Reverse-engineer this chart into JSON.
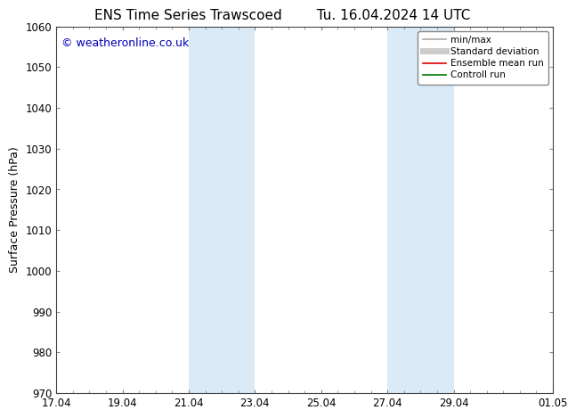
{
  "title_left": "ENS Time Series Trawscoed",
  "title_right": "Tu. 16.04.2024 14 UTC",
  "ylabel": "Surface Pressure (hPa)",
  "ylim": [
    970,
    1060
  ],
  "yticks": [
    970,
    980,
    990,
    1000,
    1010,
    1020,
    1030,
    1040,
    1050,
    1060
  ],
  "xtick_labels": [
    "17.04",
    "19.04",
    "21.04",
    "23.04",
    "25.04",
    "27.04",
    "29.04",
    "01.05"
  ],
  "xtick_positions": [
    0,
    2,
    4,
    6,
    8,
    10,
    12,
    15
  ],
  "xlim": [
    0,
    15
  ],
  "shaded_bands": [
    {
      "start": 4,
      "end": 6
    },
    {
      "start": 10,
      "end": 12
    }
  ],
  "shaded_color": "#daeaf7",
  "background_color": "#ffffff",
  "watermark_text": "© weatheronline.co.uk",
  "watermark_color": "#0000bb",
  "legend_entries": [
    {
      "label": "min/max",
      "color": "#aaaaaa",
      "lw": 1.2
    },
    {
      "label": "Standard deviation",
      "color": "#cccccc",
      "lw": 5
    },
    {
      "label": "Ensemble mean run",
      "color": "#dd0000",
      "lw": 1.2
    },
    {
      "label": "Controll run",
      "color": "#007700",
      "lw": 1.2
    }
  ],
  "title_fontsize": 11,
  "axis_label_fontsize": 9,
  "tick_fontsize": 8.5,
  "watermark_fontsize": 9,
  "legend_fontsize": 7.5
}
